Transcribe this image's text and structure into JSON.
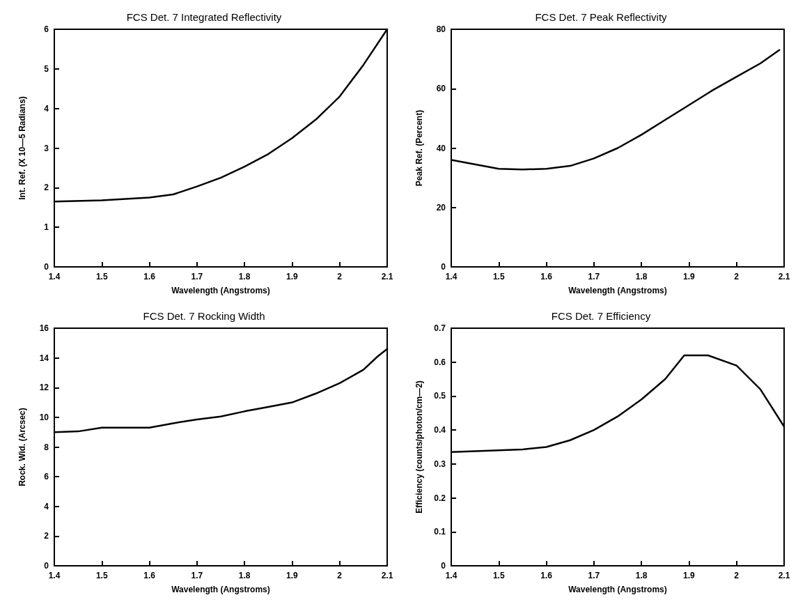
{
  "chart_data": [
    {
      "type": "line",
      "title": "FCS Det. 7 Integrated Reflectivity",
      "xlabel": "Wavelength (Angstroms)",
      "ylabel": "Int. Ref. (X 10—5 Radians)",
      "x": [
        1.4,
        1.5,
        1.6,
        1.65,
        1.7,
        1.75,
        1.8,
        1.85,
        1.9,
        1.95,
        2.0,
        2.05,
        2.1
      ],
      "series": [
        {
          "color": "#000000",
          "values": [
            1.65,
            1.68,
            1.75,
            1.83,
            2.03,
            2.25,
            2.53,
            2.85,
            3.25,
            3.72,
            4.3,
            5.1,
            6.0
          ]
        }
      ],
      "xlim": [
        1.4,
        2.1
      ],
      "xticks": [
        1.4,
        1.5,
        1.6,
        1.7,
        1.8,
        1.9,
        2,
        2.1
      ],
      "ylim": [
        0,
        6
      ],
      "yticks": [
        0,
        1,
        2,
        3,
        4,
        5,
        6
      ],
      "grid": false,
      "marker": "none",
      "line_style": "solid"
    },
    {
      "type": "line",
      "title": "FCS Det. 7 Peak Reflectivity",
      "xlabel": "Wavelength (Angstroms)",
      "ylabel": "Peak Ref. (Percent)",
      "x": [
        1.4,
        1.5,
        1.55,
        1.6,
        1.65,
        1.7,
        1.75,
        1.8,
        1.85,
        1.9,
        1.95,
        2.0,
        2.05,
        2.09
      ],
      "series": [
        {
          "color": "#000000",
          "values": [
            36,
            33,
            32.8,
            33,
            34,
            36.5,
            40,
            44.5,
            49.5,
            54.5,
            59.5,
            64,
            68.5,
            73
          ]
        }
      ],
      "xlim": [
        1.4,
        2.1
      ],
      "xticks": [
        1.4,
        1.5,
        1.6,
        1.7,
        1.8,
        1.9,
        2,
        2.1
      ],
      "ylim": [
        0,
        80
      ],
      "yticks": [
        0,
        20,
        40,
        60,
        80
      ],
      "grid": false,
      "marker": "none",
      "line_style": "solid"
    },
    {
      "type": "line",
      "title": "FCS Det. 7 Rocking Width",
      "xlabel": "Wavelength (Angstroms)",
      "ylabel": "Rock. Wid. (Arcsec)",
      "x": [
        1.4,
        1.45,
        1.5,
        1.55,
        1.6,
        1.65,
        1.7,
        1.75,
        1.8,
        1.85,
        1.9,
        1.95,
        2.0,
        2.05,
        2.08,
        2.1
      ],
      "series": [
        {
          "color": "#000000",
          "values": [
            9.0,
            9.05,
            9.3,
            9.3,
            9.3,
            9.6,
            9.85,
            10.05,
            10.4,
            10.7,
            11.0,
            11.6,
            12.3,
            13.2,
            14.1,
            14.6
          ]
        }
      ],
      "xlim": [
        1.4,
        2.1
      ],
      "xticks": [
        1.4,
        1.5,
        1.6,
        1.7,
        1.8,
        1.9,
        2,
        2.1
      ],
      "ylim": [
        0,
        16
      ],
      "yticks": [
        0,
        2,
        4,
        6,
        8,
        10,
        12,
        14,
        16
      ],
      "grid": false,
      "marker": "none",
      "line_style": "solid"
    },
    {
      "type": "line",
      "title": "FCS Det. 7 Efficiency",
      "xlabel": "Wavelength (Angstroms)",
      "ylabel": "Efficiency (counts/photon/cm—2)",
      "x": [
        1.4,
        1.5,
        1.55,
        1.6,
        1.65,
        1.7,
        1.75,
        1.8,
        1.85,
        1.89,
        1.94,
        2.0,
        2.05,
        2.1
      ],
      "series": [
        {
          "color": "#000000",
          "values": [
            0.335,
            0.34,
            0.343,
            0.35,
            0.37,
            0.4,
            0.44,
            0.49,
            0.55,
            0.62,
            0.62,
            0.59,
            0.52,
            0.41
          ]
        }
      ],
      "xlim": [
        1.4,
        2.1
      ],
      "xticks": [
        1.4,
        1.5,
        1.6,
        1.7,
        1.8,
        1.9,
        2,
        2.1
      ],
      "ylim": [
        0,
        0.7
      ],
      "yticks": [
        0,
        0.1,
        0.2,
        0.3,
        0.4,
        0.5,
        0.6,
        0.7
      ],
      "grid": false,
      "marker": "none",
      "line_style": "solid"
    }
  ]
}
